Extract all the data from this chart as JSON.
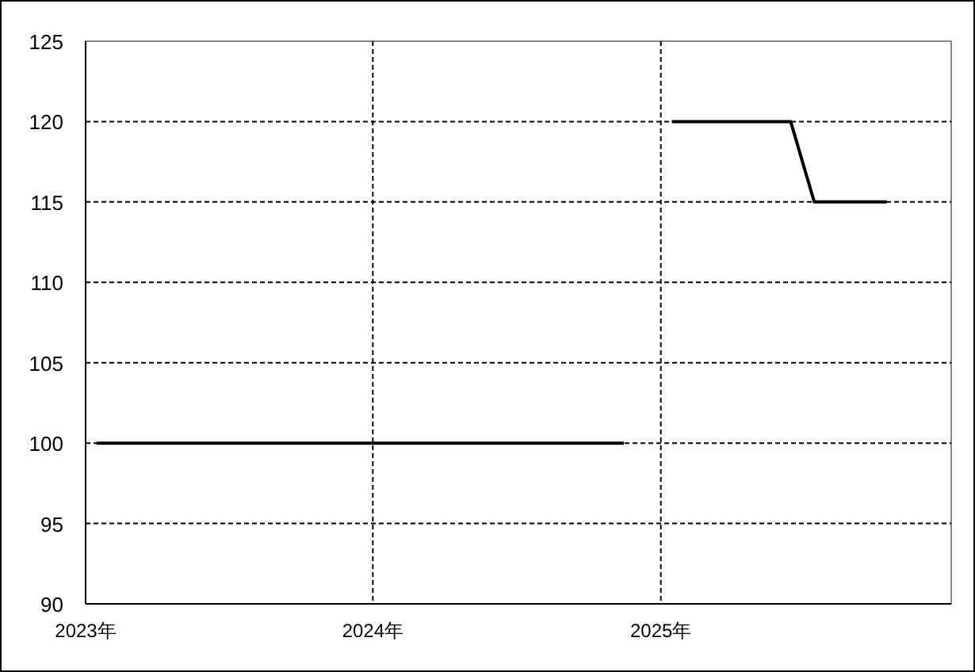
{
  "chart_data": {
    "type": "line",
    "x": [
      "2023-01-15",
      "2023-02-15",
      "2023-03-15",
      "2023-04-15",
      "2023-05-15",
      "2023-06-15",
      "2023-07-15",
      "2023-08-15",
      "2023-09-15",
      "2023-10-15",
      "2023-11-15",
      "2023-12-15",
      "2024-01-15",
      "2024-02-15",
      "2024-03-15",
      "2024-04-15",
      "2024-05-15",
      "2024-06-15",
      "2024-07-15",
      "2024-08-15",
      "2024-09-15",
      "2024-10-15",
      "2024-11-15",
      "2024-12-15",
      "2025-01-15",
      "2025-02-15",
      "2025-03-15",
      "2025-04-15",
      "2025-05-15",
      "2025-06-15",
      "2025-07-15",
      "2025-08-15",
      "2025-09-15",
      "2025-10-15"
    ],
    "series": [
      {
        "color": "#000000",
        "values": [
          100,
          100,
          100,
          100,
          100,
          100,
          100,
          100,
          100,
          100,
          100,
          100,
          100,
          100,
          100,
          100,
          100,
          100,
          100,
          100,
          100,
          100,
          100,
          null,
          120,
          120,
          120,
          120,
          120,
          120,
          115,
          115,
          115,
          115
        ]
      }
    ],
    "xlim": [
      "2023-01-01",
      "2026-01-05"
    ],
    "xticks": [
      {
        "value": "2023-01-01",
        "label": "2023年"
      },
      {
        "value": "2024-01-01",
        "label": "2024年"
      },
      {
        "value": "2025-01-01",
        "label": "2025年"
      }
    ],
    "ylim": [
      90,
      125
    ],
    "yticks": [
      90,
      95,
      100,
      105,
      110,
      115,
      120,
      125
    ],
    "grid": true,
    "marker": "none",
    "line_style": "solid"
  }
}
